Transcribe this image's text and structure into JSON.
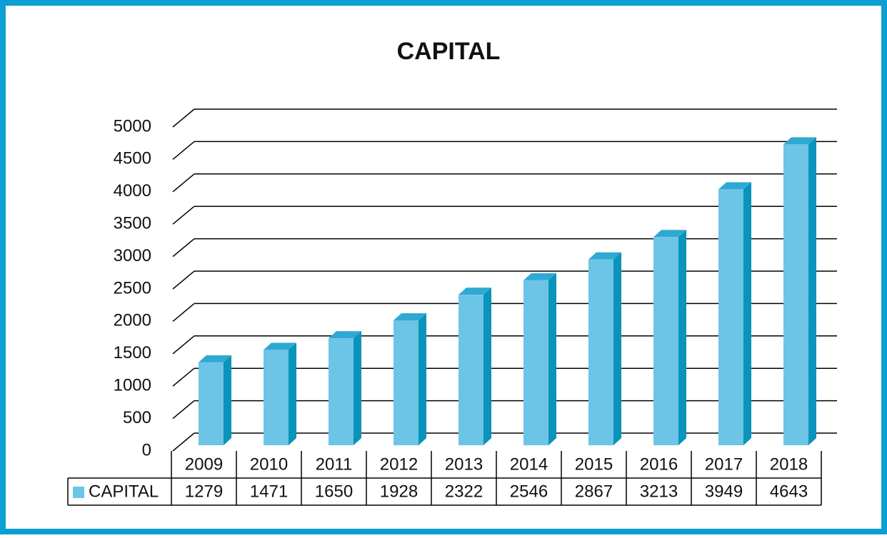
{
  "chart_data": {
    "type": "bar3d",
    "title": "CAPITAL",
    "categories": [
      "2009",
      "2010",
      "2011",
      "2012",
      "2013",
      "2014",
      "2015",
      "2016",
      "2017",
      "2018"
    ],
    "series": [
      {
        "name": "CAPITAL",
        "color": "#6cc4e6",
        "values": [
          1279,
          1471,
          1650,
          1928,
          2322,
          2546,
          2867,
          3213,
          3949,
          4643
        ]
      }
    ],
    "ylim": [
      0,
      5000
    ],
    "yticks": [
      0,
      500,
      1000,
      1500,
      2000,
      2500,
      3000,
      3500,
      4000,
      4500,
      5000
    ],
    "grid": true,
    "data_table": true
  }
}
